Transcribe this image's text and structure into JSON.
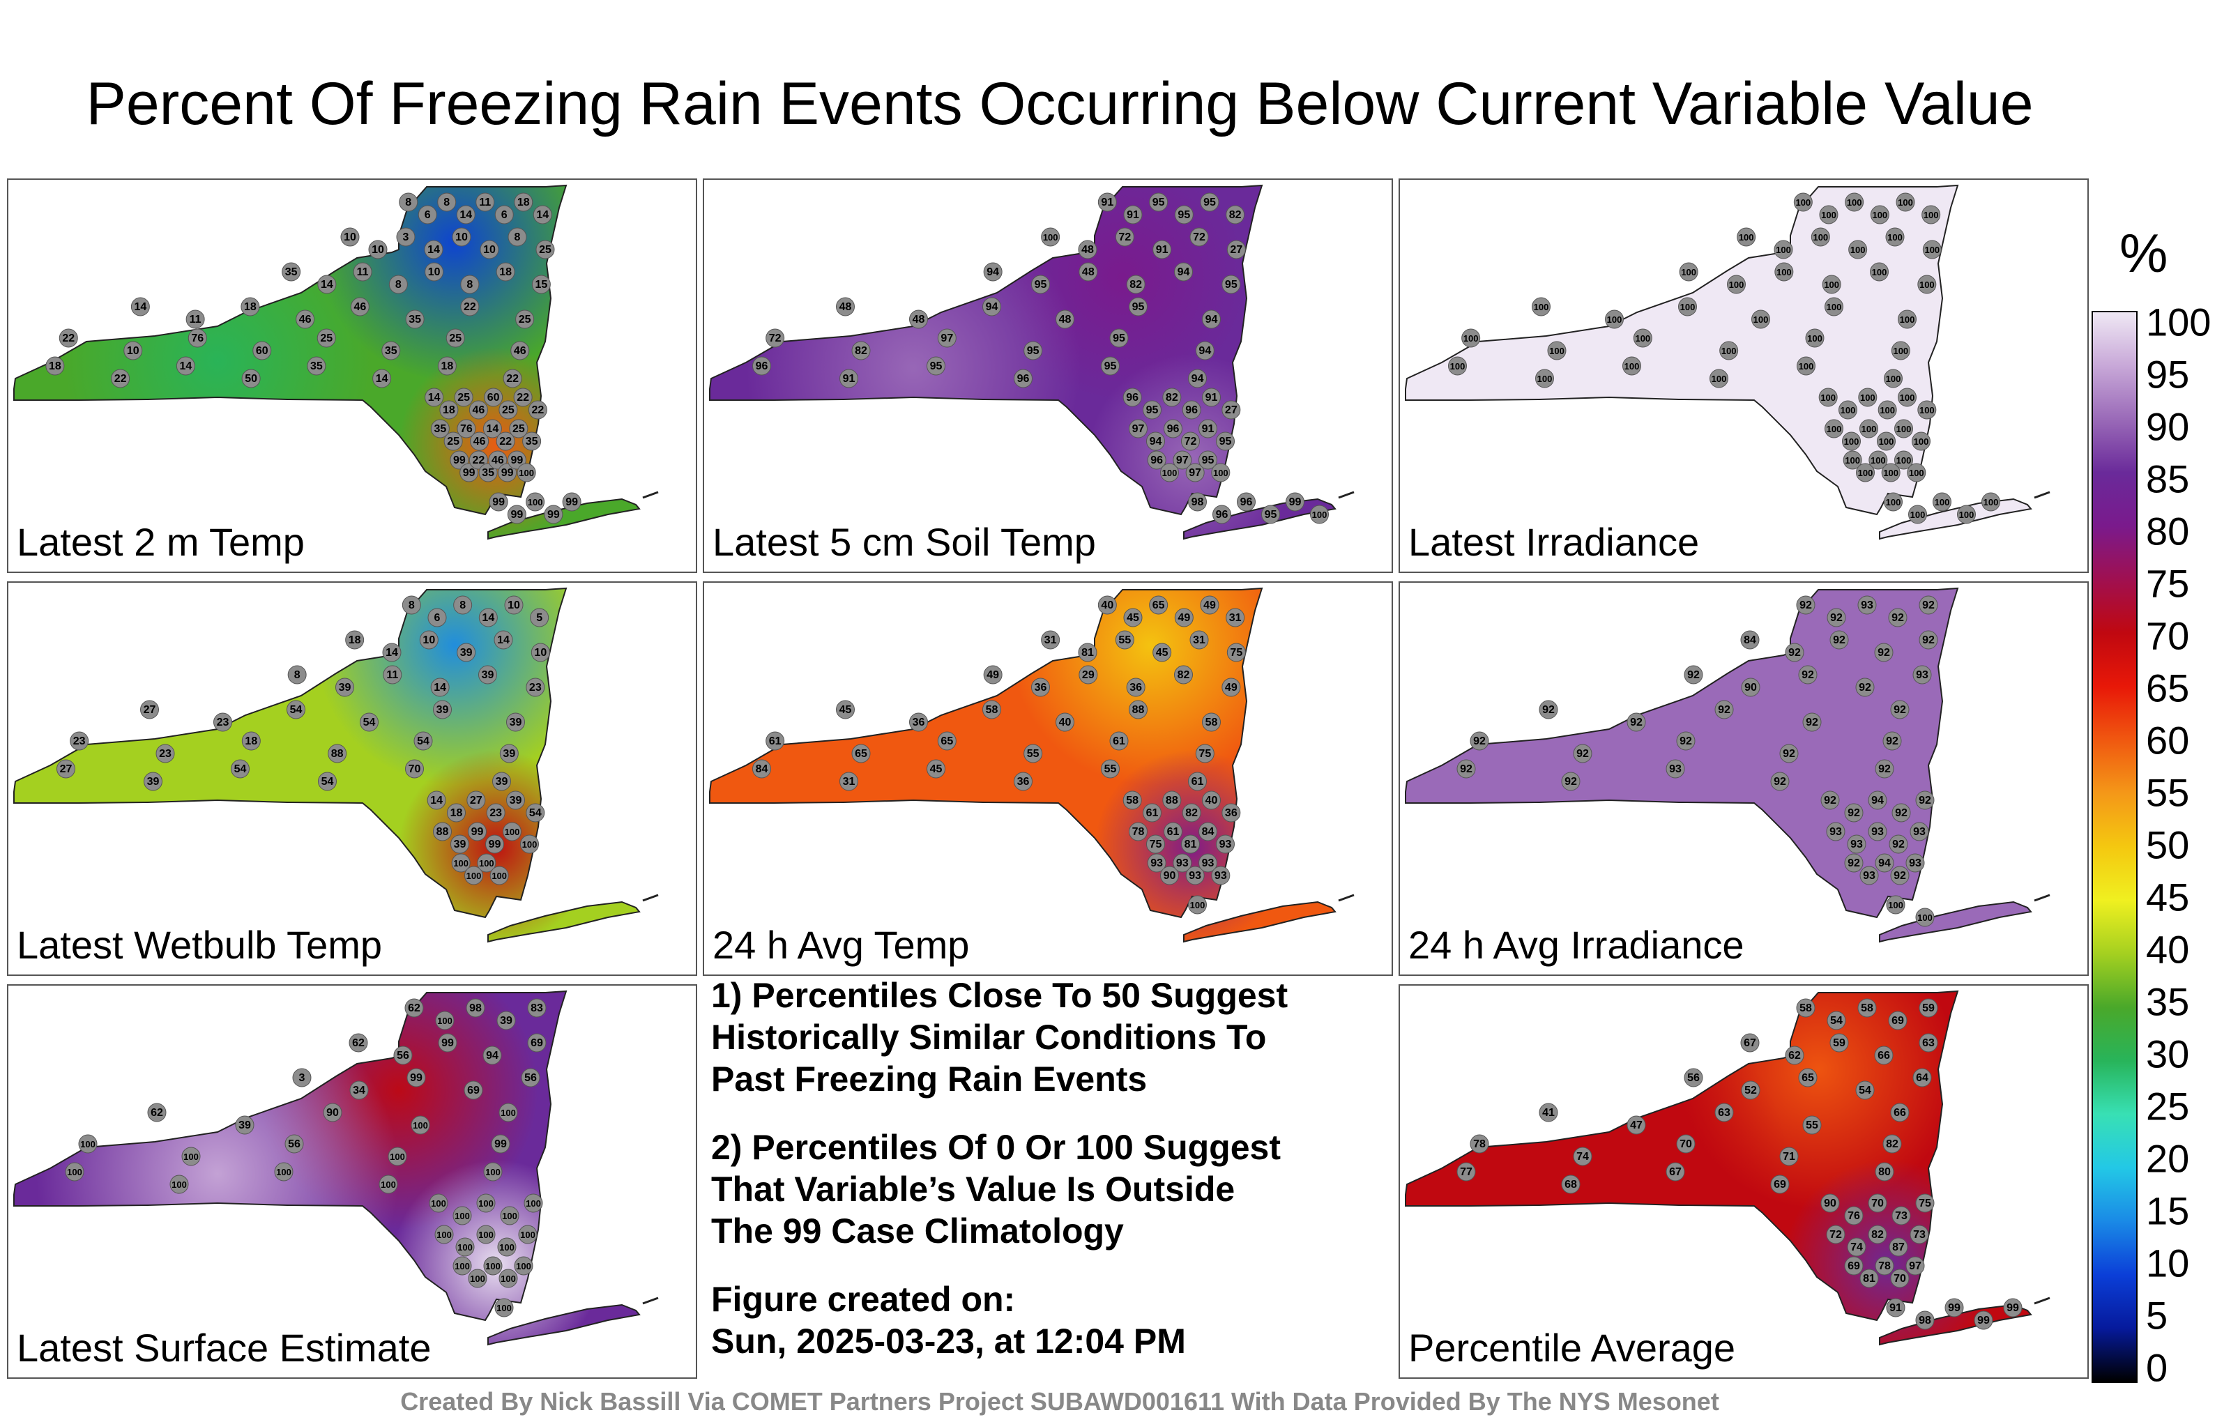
{
  "title": "Percent Of Freezing Rain Events Occurring Below Current Variable Value",
  "colorbar": {
    "unit": "%",
    "ticks": [
      "100",
      "95",
      "90",
      "85",
      "80",
      "75",
      "70",
      "65",
      "60",
      "55",
      "50",
      "45",
      "40",
      "35",
      "30",
      "25",
      "20",
      "15",
      "10",
      "5",
      "0"
    ],
    "colors": [
      "#000000",
      "#061a9c",
      "#0b3fd8",
      "#1a8ae6",
      "#23c8e6",
      "#38e0b4",
      "#28b45a",
      "#4aa82a",
      "#a4d020",
      "#f0f020",
      "#f4c810",
      "#f49818",
      "#f05810",
      "#e81808",
      "#c00810",
      "#a01050",
      "#7a1a8c",
      "#6a2a9a",
      "#9a6ab8",
      "#c8a8d8",
      "#efe8f4"
    ]
  },
  "panels": [
    {
      "label": "Latest 2 m Temp",
      "values": [
        "8",
        "6",
        "8",
        "14",
        "11",
        "6",
        "18",
        "14",
        "10",
        "10",
        "3",
        "14",
        "10",
        "10",
        "8",
        "25",
        "35",
        "14",
        "11",
        "8",
        "10",
        "8",
        "18",
        "15",
        "14",
        "11",
        "18",
        "46",
        "46",
        "35",
        "22",
        "25",
        "22",
        "10",
        "76",
        "60",
        "25",
        "35",
        "25",
        "46",
        "18",
        "22",
        "14",
        "50",
        "35",
        "14",
        "18",
        "22",
        "14",
        "18",
        "25",
        "46",
        "60",
        "25",
        "22",
        "22",
        "35",
        "25",
        "76",
        "46",
        "14",
        "22",
        "25",
        "35",
        "99",
        "99",
        "22",
        "35",
        "46",
        "99",
        "99",
        "100",
        "99",
        "99",
        "100",
        "99",
        "99"
      ]
    },
    {
      "label": "Latest 5 cm Soil Temp",
      "values": [
        "91",
        "91",
        "95",
        "95",
        "95",
        "82",
        "100",
        "48",
        "72",
        "91",
        "72",
        "27",
        "94",
        "95",
        "48",
        "82",
        "94",
        "95",
        "48",
        "48",
        "94",
        "48",
        "95",
        "94",
        "72",
        "82",
        "97",
        "95",
        "95",
        "94",
        "96",
        "91",
        "95",
        "96",
        "95",
        "94",
        "96",
        "95",
        "82",
        "96",
        "91",
        "27",
        "97",
        "94",
        "96",
        "72",
        "91",
        "95",
        "96",
        "100",
        "97",
        "97",
        "95",
        "100",
        "98",
        "96",
        "96",
        "95",
        "99",
        "100"
      ]
    },
    {
      "label": "Latest Irradiance",
      "values": [
        "100",
        "100",
        "100",
        "100",
        "100",
        "100",
        "100",
        "100",
        "100",
        "100",
        "100",
        "100",
        "100",
        "100",
        "100",
        "100",
        "100",
        "100",
        "100",
        "100",
        "100",
        "100",
        "100",
        "100",
        "100",
        "100",
        "100",
        "100",
        "100",
        "100",
        "100",
        "100",
        "100",
        "100",
        "100",
        "100",
        "100",
        "100",
        "100",
        "100",
        "100",
        "100",
        "100",
        "100",
        "100",
        "100",
        "100",
        "100",
        "100",
        "100",
        "100",
        "100",
        "100",
        "100",
        "100",
        "100",
        "100",
        "100",
        "100"
      ]
    },
    {
      "label": "Latest Wetbulb Temp",
      "values": [
        "8",
        "6",
        "8",
        "14",
        "10",
        "5",
        "18",
        "14",
        "10",
        "39",
        "14",
        "10",
        "8",
        "39",
        "11",
        "14",
        "39",
        "23",
        "27",
        "23",
        "54",
        "54",
        "39",
        "39",
        "23",
        "23",
        "18",
        "88",
        "54",
        "39",
        "27",
        "39",
        "54",
        "54",
        "70",
        "39",
        "14",
        "18",
        "27",
        "23",
        "39",
        "54",
        "88",
        "39",
        "99",
        "99",
        "100",
        "100",
        "100",
        "100",
        "100",
        "100"
      ]
    },
    {
      "label": "24 h Avg Temp",
      "values": [
        "40",
        "45",
        "65",
        "49",
        "49",
        "31",
        "31",
        "81",
        "55",
        "45",
        "31",
        "75",
        "49",
        "36",
        "29",
        "36",
        "82",
        "49",
        "45",
        "36",
        "58",
        "40",
        "88",
        "58",
        "61",
        "65",
        "65",
        "55",
        "61",
        "75",
        "84",
        "31",
        "45",
        "36",
        "55",
        "61",
        "58",
        "61",
        "88",
        "82",
        "40",
        "36",
        "78",
        "75",
        "61",
        "81",
        "84",
        "93",
        "93",
        "90",
        "93",
        "93",
        "93",
        "93",
        "100"
      ]
    },
    {
      "label": "24 h Avg Irradiance",
      "values": [
        "92",
        "92",
        "93",
        "92",
        "92",
        "84",
        "92",
        "92",
        "92",
        "92",
        "92",
        "90",
        "92",
        "92",
        "93",
        "92",
        "92",
        "92",
        "92",
        "92",
        "92",
        "92",
        "92",
        "92",
        "92",
        "92",
        "92",
        "93",
        "92",
        "92",
        "92",
        "92",
        "94",
        "92",
        "92",
        "93",
        "93",
        "93",
        "92",
        "93",
        "92",
        "93",
        "94",
        "92",
        "93",
        "100",
        "100"
      ]
    },
    {
      "label": "Latest Surface Estimate",
      "values": [
        "62",
        "100",
        "98",
        "39",
        "83",
        "62",
        "56",
        "99",
        "94",
        "69",
        "3",
        "34",
        "99",
        "69",
        "56",
        "62",
        "39",
        "90",
        "100",
        "100",
        "100",
        "100",
        "56",
        "100",
        "99",
        "100",
        "100",
        "100",
        "100",
        "100",
        "100",
        "100",
        "100",
        "100",
        "100",
        "100",
        "100",
        "100",
        "100",
        "100",
        "100",
        "100",
        "100",
        "100",
        "100",
        "100"
      ]
    },
    {
      "label": "Percentile Average",
      "values": [
        "58",
        "54",
        "58",
        "69",
        "59",
        "67",
        "62",
        "59",
        "66",
        "63",
        "56",
        "52",
        "65",
        "54",
        "64",
        "41",
        "47",
        "63",
        "55",
        "66",
        "78",
        "74",
        "70",
        "71",
        "82",
        "77",
        "68",
        "67",
        "69",
        "80",
        "90",
        "76",
        "70",
        "73",
        "75",
        "72",
        "74",
        "82",
        "87",
        "73",
        "69",
        "81",
        "78",
        "70",
        "97",
        "91",
        "98",
        "99",
        "99",
        "99"
      ]
    }
  ],
  "notes": {
    "note1": "1) Percentiles Close To 50 Suggest\nHistorically Similar Conditions To\nPast Freezing Rain Events",
    "note2": "2) Percentiles Of 0 Or 100 Suggest\nThat Variable’s Value Is Outside\nThe 99 Case Climatology",
    "note3": "Figure created on:\nSun, 2025-03-23, at 12:04 PM"
  },
  "footer": "Created By Nick Bassill Via COMET Partners Project SUBAWD001611 With Data Provided By The NYS Mesonet"
}
